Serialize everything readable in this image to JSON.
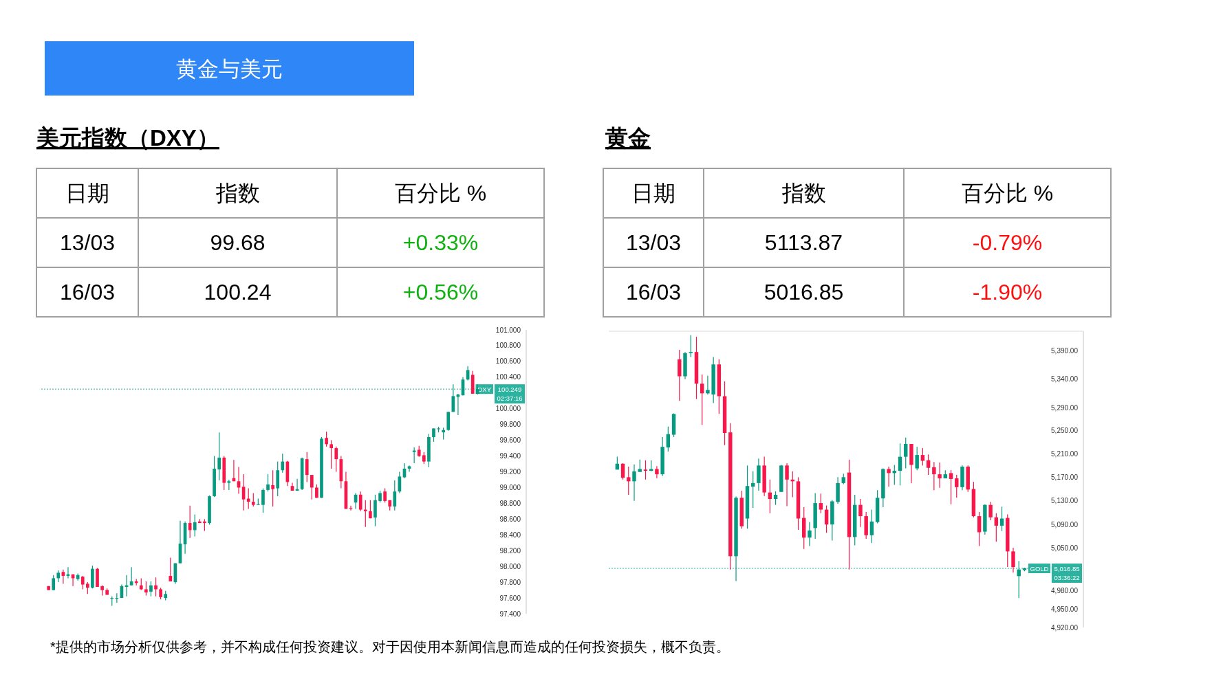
{
  "chart_data": [
    {
      "type": "other",
      "title": "黄金与美元",
      "color": "#2f86f6",
      "annotations": [
        "*提供的市场分析仅供参考，并不构成任何投资建议。对于因使用本新闻信息而造成的任何投资损失，概不负责。"
      ]
    },
    {
      "type": "other",
      "title": "美元指数（DXY）",
      "annotations": [
        "日期",
        "指数",
        "百分比 %",
        "13/03",
        "99.68",
        "+0.33%",
        "16/03",
        "100.24",
        "+0.56%"
      ],
      "colors": [
        "#000000",
        "#000000",
        "#000000",
        "#000000",
        "#000000",
        "#10b010",
        "#000000",
        "#000000",
        "#10b010"
      ]
    },
    {
      "type": "candlestick",
      "tick_labels": "y",
      "ylim": [
        97.4,
        101.0
      ],
      "yticks": [
        {
          "value": 101.0,
          "label": "101.000"
        },
        {
          "value": 100.8,
          "label": "100.800"
        },
        {
          "value": 100.6,
          "label": "100.600"
        },
        {
          "value": 100.4,
          "label": "100.400"
        },
        {
          "value": 100.0,
          "label": "100.000"
        },
        {
          "value": 99.8,
          "label": "99.800"
        },
        {
          "value": 99.6,
          "label": "99.600"
        },
        {
          "value": 99.4,
          "label": "99.400"
        },
        {
          "value": 99.2,
          "label": "99.200"
        },
        {
          "value": 99.0,
          "label": "99.000"
        },
        {
          "value": 98.8,
          "label": "98.800"
        },
        {
          "value": 98.6,
          "label": "98.600"
        },
        {
          "value": 98.4,
          "label": "98.400"
        },
        {
          "value": 98.2,
          "label": "98.200"
        },
        {
          "value": 98.0,
          "label": "98.000"
        },
        {
          "value": 97.8,
          "label": "97.800"
        },
        {
          "value": 97.6,
          "label": "97.600"
        },
        {
          "value": 97.4,
          "label": "97.400"
        }
      ],
      "colors": [
        "#f7174a",
        "#089981",
        "#089981",
        "#f7174a",
        "#089981",
        "#f7174a",
        "#089981",
        "#f7174a",
        "#f7174a",
        "#089981",
        "#f7174a",
        "#f7174a",
        "#f7174a",
        "#089981",
        "#089981",
        "#089981",
        "#089981",
        "#089981",
        "#f7174a",
        "#f7174a",
        "#f7174a",
        "#089981",
        "#f7174a",
        "#f7174a",
        "#089981",
        "#f7174a",
        "#089981",
        "#089981",
        "#089981",
        "#f7174a",
        "#089981",
        "#f7174a",
        "#f7174a",
        "#089981",
        "#089981",
        "#089981",
        "#f7174a",
        "#089981",
        "#f7174a",
        "#f7174a",
        "#f7174a",
        "#f7174a",
        "#f7174a",
        "#089981",
        "#089981",
        "#089981",
        "#f7174a",
        "#089981",
        "#089981",
        "#f7174a",
        "#f7174a",
        "#089981",
        "#089981",
        "#f7174a",
        "#f7174a",
        "#f7174a",
        "#089981",
        "#f7174a",
        "#f7174a",
        "#f7174a",
        "#f7174a",
        "#f7174a",
        "#f7174a",
        "#089981",
        "#f7174a",
        "#f7174a",
        "#f7174a",
        "#089981",
        "#089981",
        "#f7174a",
        "#f7174a",
        "#089981",
        "#089981",
        "#089981",
        "#089981",
        "#089981",
        "#f7174a",
        "#f7174a",
        "#089981",
        "#089981",
        "#089981",
        "#089981",
        "#089981",
        "#089981",
        "#089981",
        "#089981",
        "#089981",
        "#f7174a",
        "#089981"
      ],
      "ref_lines": [
        {
          "axis": "y",
          "value": 100.249,
          "label": "DXY",
          "color": "#2bb3a0",
          "line_style": "dotted"
        }
      ],
      "annotations": [
        "100.249",
        "02:37:16"
      ],
      "categories": [
        null,
        null,
        null,
        null,
        null,
        null,
        null,
        null,
        null,
        null,
        null,
        null,
        null,
        null,
        null,
        null,
        null,
        null,
        null,
        null,
        null,
        null,
        null,
        null,
        null,
        null,
        null,
        null,
        null,
        null,
        null,
        null,
        null,
        null,
        null,
        null,
        null,
        null,
        null,
        null,
        null,
        null,
        null,
        null,
        null,
        null,
        null,
        null,
        null,
        null,
        null,
        null,
        null,
        null,
        null,
        null,
        null,
        null,
        null,
        null,
        null,
        null,
        null,
        null,
        null,
        null,
        null,
        null,
        null,
        null,
        null,
        null,
        null,
        null,
        null,
        null,
        null,
        null,
        null,
        null,
        null,
        null,
        null,
        null,
        null,
        null,
        null,
        null,
        null
      ],
      "ohlc": [
        [
          97.75,
          97.75,
          97.7,
          97.7
        ],
        [
          97.7,
          97.89,
          97.7,
          97.85
        ],
        [
          97.85,
          97.95,
          97.8,
          97.92
        ],
        [
          97.93,
          97.96,
          97.78,
          97.88
        ],
        [
          97.88,
          97.99,
          97.85,
          97.9
        ],
        [
          97.9,
          97.9,
          97.75,
          97.85
        ],
        [
          97.84,
          97.91,
          97.82,
          97.89
        ],
        [
          97.87,
          97.88,
          97.71,
          97.77
        ],
        [
          97.78,
          97.8,
          97.65,
          97.73
        ],
        [
          97.73,
          98.01,
          97.72,
          97.97
        ],
        [
          97.97,
          97.98,
          97.74,
          97.74
        ],
        [
          97.75,
          97.76,
          97.63,
          97.7
        ],
        [
          97.7,
          97.72,
          97.64,
          97.64
        ],
        [
          97.59,
          97.62,
          97.5,
          97.6
        ],
        [
          97.59,
          97.66,
          97.54,
          97.6
        ],
        [
          97.6,
          97.77,
          97.6,
          97.75
        ],
        [
          97.74,
          97.89,
          97.62,
          97.76
        ],
        [
          97.76,
          97.99,
          97.76,
          97.81
        ],
        [
          97.81,
          97.84,
          97.76,
          97.79
        ],
        [
          97.76,
          97.85,
          97.7,
          97.71
        ],
        [
          97.71,
          97.81,
          97.63,
          97.67
        ],
        [
          97.68,
          97.81,
          97.62,
          97.76
        ],
        [
          97.76,
          97.86,
          97.62,
          97.71
        ],
        [
          97.71,
          97.73,
          97.58,
          97.61
        ],
        [
          97.6,
          97.69,
          97.57,
          97.65
        ],
        [
          97.88,
          98.11,
          97.81,
          97.81
        ],
        [
          97.8,
          98.04,
          97.78,
          98.04
        ],
        [
          98.04,
          98.58,
          98.04,
          98.29
        ],
        [
          98.28,
          98.57,
          98.16,
          98.55
        ],
        [
          98.55,
          98.77,
          98.36,
          98.46
        ],
        [
          98.46,
          98.66,
          98.38,
          98.56
        ],
        [
          98.57,
          98.6,
          98.55,
          98.55
        ],
        [
          98.57,
          98.6,
          98.45,
          98.55
        ],
        [
          98.55,
          98.9,
          98.53,
          98.89
        ],
        [
          98.89,
          99.4,
          98.88,
          99.24
        ],
        [
          99.23,
          99.7,
          99.09,
          99.38
        ],
        [
          99.38,
          99.4,
          98.97,
          99.06
        ],
        [
          99.06,
          99.1,
          98.97,
          99.08
        ],
        [
          99.12,
          99.35,
          99.08,
          99.08
        ],
        [
          99.08,
          99.26,
          98.92,
          99.0
        ],
        [
          99.01,
          99.17,
          98.71,
          98.85
        ],
        [
          98.86,
          98.99,
          98.73,
          98.82
        ],
        [
          98.82,
          98.93,
          98.76,
          98.78
        ],
        [
          98.78,
          98.86,
          98.78,
          98.79
        ],
        [
          98.78,
          98.99,
          98.68,
          98.97
        ],
        [
          98.97,
          99.17,
          98.95,
          99.04
        ],
        [
          99.03,
          99.22,
          98.76,
          98.98
        ],
        [
          98.99,
          99.33,
          98.89,
          99.22
        ],
        [
          99.22,
          99.43,
          99.19,
          99.33
        ],
        [
          99.33,
          99.34,
          99.02,
          99.07
        ],
        [
          99.02,
          99.06,
          98.96,
          98.96
        ],
        [
          98.96,
          99.11,
          98.96,
          98.98
        ],
        [
          98.98,
          99.38,
          98.97,
          99.37
        ],
        [
          99.36,
          99.45,
          99.07,
          99.16
        ],
        [
          99.16,
          99.16,
          98.85,
          99.0
        ],
        [
          99.0,
          99.04,
          98.87,
          98.87
        ],
        [
          98.87,
          99.64,
          98.87,
          99.62
        ],
        [
          99.63,
          99.71,
          99.52,
          99.55
        ],
        [
          99.55,
          99.6,
          99.24,
          99.5
        ],
        [
          99.5,
          99.52,
          99.2,
          99.36
        ],
        [
          99.36,
          99.4,
          98.99,
          99.08
        ],
        [
          99.08,
          99.2,
          98.73,
          98.73
        ],
        [
          98.74,
          98.77,
          98.71,
          98.73
        ],
        [
          98.81,
          98.93,
          98.73,
          98.91
        ],
        [
          98.91,
          98.95,
          98.7,
          98.72
        ],
        [
          98.72,
          98.84,
          98.5,
          98.7
        ],
        [
          98.7,
          98.84,
          98.61,
          98.61
        ],
        [
          98.62,
          98.91,
          98.51,
          98.84
        ],
        [
          98.83,
          98.96,
          98.81,
          98.93
        ],
        [
          98.95,
          98.99,
          98.81,
          98.83
        ],
        [
          98.84,
          98.84,
          98.71,
          98.76
        ],
        [
          98.76,
          99.09,
          98.71,
          98.95
        ],
        [
          98.95,
          99.2,
          98.93,
          99.14
        ],
        [
          99.13,
          99.31,
          99.12,
          99.24
        ],
        [
          99.24,
          99.28,
          99.2,
          99.27
        ],
        [
          99.45,
          99.51,
          99.31,
          99.47
        ],
        [
          99.48,
          99.53,
          99.39,
          99.4
        ],
        [
          99.41,
          99.45,
          99.3,
          99.33
        ],
        [
          99.33,
          99.68,
          99.26,
          99.64
        ],
        [
          99.64,
          99.75,
          99.58,
          99.75
        ],
        [
          99.74,
          99.77,
          99.7,
          99.75
        ],
        [
          99.7,
          99.76,
          99.61,
          99.73
        ],
        [
          99.73,
          99.96,
          99.72,
          99.96
        ],
        [
          99.96,
          100.31,
          99.96,
          100.16
        ],
        [
          100.15,
          100.19,
          99.92,
          100.18
        ],
        [
          100.17,
          100.4,
          100.17,
          100.37
        ],
        [
          100.37,
          100.54,
          100.36,
          100.49
        ],
        [
          100.43,
          100.48,
          100.19,
          100.19
        ],
        [
          100.19,
          100.31,
          100.18,
          100.249
        ]
      ]
    },
    {
      "type": "other",
      "title": "黄金",
      "annotations": [
        "日期",
        "指数",
        "百分比 %",
        "13/03",
        "5113.87",
        "-0.79%",
        "16/03",
        "5016.85",
        "-1.90%"
      ],
      "colors": [
        "#000000",
        "#000000",
        "#000000",
        "#000000",
        "#000000",
        "#ff1010",
        "#000000",
        "#000000",
        "#ff1010"
      ]
    },
    {
      "type": "candlestick",
      "tick_labels": "y",
      "log": true,
      "ylim": [
        4920,
        5425
      ],
      "yticks": [
        {
          "value": 5390,
          "label": "5,390.00"
        },
        {
          "value": 5340,
          "label": "5,340.00"
        },
        {
          "value": 5290,
          "label": "5,290.00"
        },
        {
          "value": 5250,
          "label": "5,250.00"
        },
        {
          "value": 5210,
          "label": "5,210.00"
        },
        {
          "value": 5170,
          "label": "5,170.00"
        },
        {
          "value": 5130,
          "label": "5,130.00"
        },
        {
          "value": 5090,
          "label": "5,090.00"
        },
        {
          "value": 5050,
          "label": "5,050.00"
        },
        {
          "value": 4980,
          "label": "4,980.00"
        },
        {
          "value": 4950,
          "label": "4,950.00"
        },
        {
          "value": 4920,
          "label": "4,920.00"
        }
      ],
      "colors": [
        "#089981",
        "#f7174a",
        "#f7174a",
        "#089981",
        "#089981",
        "#f7174a",
        "#089981",
        "#f7174a",
        "#089981",
        "#089981",
        "#089981",
        "#f7174a",
        "#089981",
        "#089981",
        "#f7174a",
        "#f7174a",
        "#089981",
        "#089981",
        "#f7174a",
        "#f7174a",
        "#f7174a",
        "#089981",
        "#f7174a",
        "#089981",
        "#089981",
        "#089981",
        "#f7174a",
        "#f7174a",
        "#089981",
        "#089981",
        "#f7174a",
        "#f7174a",
        "#f7174a",
        "#f7174a",
        "#089981",
        "#089981",
        "#f7174a",
        "#f7174a",
        "#089981",
        "#089981",
        "#089981",
        "#f7174a",
        "#089981",
        "#f7174a",
        "#f7174a",
        "#089981",
        "#089981",
        "#089981",
        "#f7174a",
        "#089981",
        "#089981",
        "#089981",
        "#f7174a",
        "#089981",
        "#f7174a",
        "#f7174a",
        "#f7174a",
        "#f7174a",
        "#089981",
        "#f7174a",
        "#f7174a",
        "#089981",
        "#f7174a",
        "#f7174a",
        "#f7174a",
        "#089981",
        "#f7174a",
        "#f7174a",
        "#089981",
        "#f7174a",
        "#f7174a",
        "#089981",
        "#089981"
      ],
      "ref_lines": [
        {
          "axis": "y",
          "value": 5016.85,
          "label": "GOLD",
          "color": "#2bb3a0",
          "line_style": "dotted"
        }
      ],
      "annotations": [
        "5,016.85",
        "03:36:22"
      ],
      "categories": [
        null,
        null,
        null,
        null,
        null,
        null,
        null,
        null,
        null,
        null,
        null,
        null,
        null,
        null,
        null,
        null,
        null,
        null,
        null,
        null,
        null,
        null,
        null,
        null,
        null,
        null,
        null,
        null,
        null,
        null,
        null,
        null,
        null,
        null,
        null,
        null,
        null,
        null,
        null,
        null,
        null,
        null,
        null,
        null,
        null,
        null,
        null,
        null,
        null,
        null,
        null,
        null,
        null,
        null,
        null,
        null,
        null,
        null,
        null,
        null,
        null,
        null,
        null,
        null,
        null,
        null,
        null,
        null,
        null,
        null,
        null,
        null,
        null
      ],
      "ohlc": [
        [
          5183,
          5205,
          5183,
          5193
        ],
        [
          5193,
          5194,
          5166,
          5169
        ],
        [
          5170,
          5188,
          5140,
          5163
        ],
        [
          5163,
          5192,
          5130,
          5180
        ],
        [
          5179,
          5200,
          5179,
          5184
        ],
        [
          5183,
          5199,
          5166,
          5181
        ],
        [
          5181,
          5199,
          5180,
          5184
        ],
        [
          5184,
          5189,
          5168,
          5175
        ],
        [
          5175,
          5239,
          5172,
          5222
        ],
        [
          5221,
          5257,
          5214,
          5244
        ],
        [
          5243,
          5280,
          5239,
          5279
        ],
        [
          5375,
          5392,
          5302,
          5345
        ],
        [
          5345,
          5388,
          5340,
          5386
        ],
        [
          5386,
          5418,
          5379,
          5388
        ],
        [
          5388,
          5415,
          5305,
          5332
        ],
        [
          5332,
          5348,
          5260,
          5315
        ],
        [
          5315,
          5346,
          5313,
          5321
        ],
        [
          5313,
          5379,
          5298,
          5366
        ],
        [
          5366,
          5375,
          5279,
          5310
        ],
        [
          5310,
          5336,
          5225,
          5246
        ],
        [
          5247,
          5263,
          5015,
          5037
        ],
        [
          5037,
          5137,
          4996,
          5135
        ],
        [
          5135,
          5147,
          5083,
          5087
        ],
        [
          5100,
          5190,
          5083,
          5155
        ],
        [
          5154,
          5180,
          5118,
          5160
        ],
        [
          5160,
          5202,
          5147,
          5190
        ],
        [
          5190,
          5205,
          5138,
          5144
        ],
        [
          5144,
          5166,
          5109,
          5133
        ],
        [
          5133,
          5146,
          5123,
          5140
        ],
        [
          5145,
          5191,
          5145,
          5190
        ],
        [
          5190,
          5194,
          5121,
          5166
        ],
        [
          5166,
          5180,
          5136,
          5163
        ],
        [
          5163,
          5170,
          5081,
          5100
        ],
        [
          5101,
          5119,
          5049,
          5068
        ],
        [
          5068,
          5094,
          5054,
          5080
        ],
        [
          5084,
          5143,
          5066,
          5126
        ],
        [
          5126,
          5142,
          5109,
          5115
        ],
        [
          5115,
          5122,
          5076,
          5090
        ],
        [
          5090,
          5131,
          5063,
          5129
        ],
        [
          5128,
          5170,
          5125,
          5160
        ],
        [
          5160,
          5176,
          5158,
          5170
        ],
        [
          5178,
          5200,
          5015,
          5069
        ],
        [
          5069,
          5140,
          5055,
          5123
        ],
        [
          5123,
          5133,
          5086,
          5104
        ],
        [
          5104,
          5111,
          5066,
          5072
        ],
        [
          5072,
          5115,
          5059,
          5095
        ],
        [
          5094,
          5148,
          5092,
          5135
        ],
        [
          5134,
          5185,
          5119,
          5184
        ],
        [
          5184,
          5188,
          5154,
          5177
        ],
        [
          5177,
          5191,
          5157,
          5181
        ],
        [
          5181,
          5228,
          5156,
          5205
        ],
        [
          5205,
          5238,
          5185,
          5227
        ],
        [
          5227,
          5227,
          5160,
          5191
        ],
        [
          5185,
          5222,
          5182,
          5208
        ],
        [
          5208,
          5220,
          5190,
          5198
        ],
        [
          5199,
          5209,
          5174,
          5186
        ],
        [
          5187,
          5196,
          5148,
          5175
        ],
        [
          5175,
          5195,
          5152,
          5168
        ],
        [
          5168,
          5182,
          5168,
          5175
        ],
        [
          5177,
          5182,
          5124,
          5167
        ],
        [
          5168,
          5174,
          5135,
          5153
        ],
        [
          5153,
          5190,
          5148,
          5188
        ],
        [
          5188,
          5190,
          5145,
          5149
        ],
        [
          5150,
          5162,
          5102,
          5104
        ],
        [
          5104,
          5111,
          5054,
          5077
        ],
        [
          5078,
          5124,
          5073,
          5123
        ],
        [
          5123,
          5128,
          5097,
          5102
        ],
        [
          5102,
          5109,
          5061,
          5088
        ],
        [
          5088,
          5120,
          5079,
          5100
        ],
        [
          5101,
          5107,
          5019,
          5045
        ],
        [
          5045,
          5051,
          5010,
          5019
        ],
        [
          5004,
          5029,
          4968,
          5015
        ],
        [
          5014,
          5018,
          5012,
          5016.85
        ]
      ]
    }
  ]
}
